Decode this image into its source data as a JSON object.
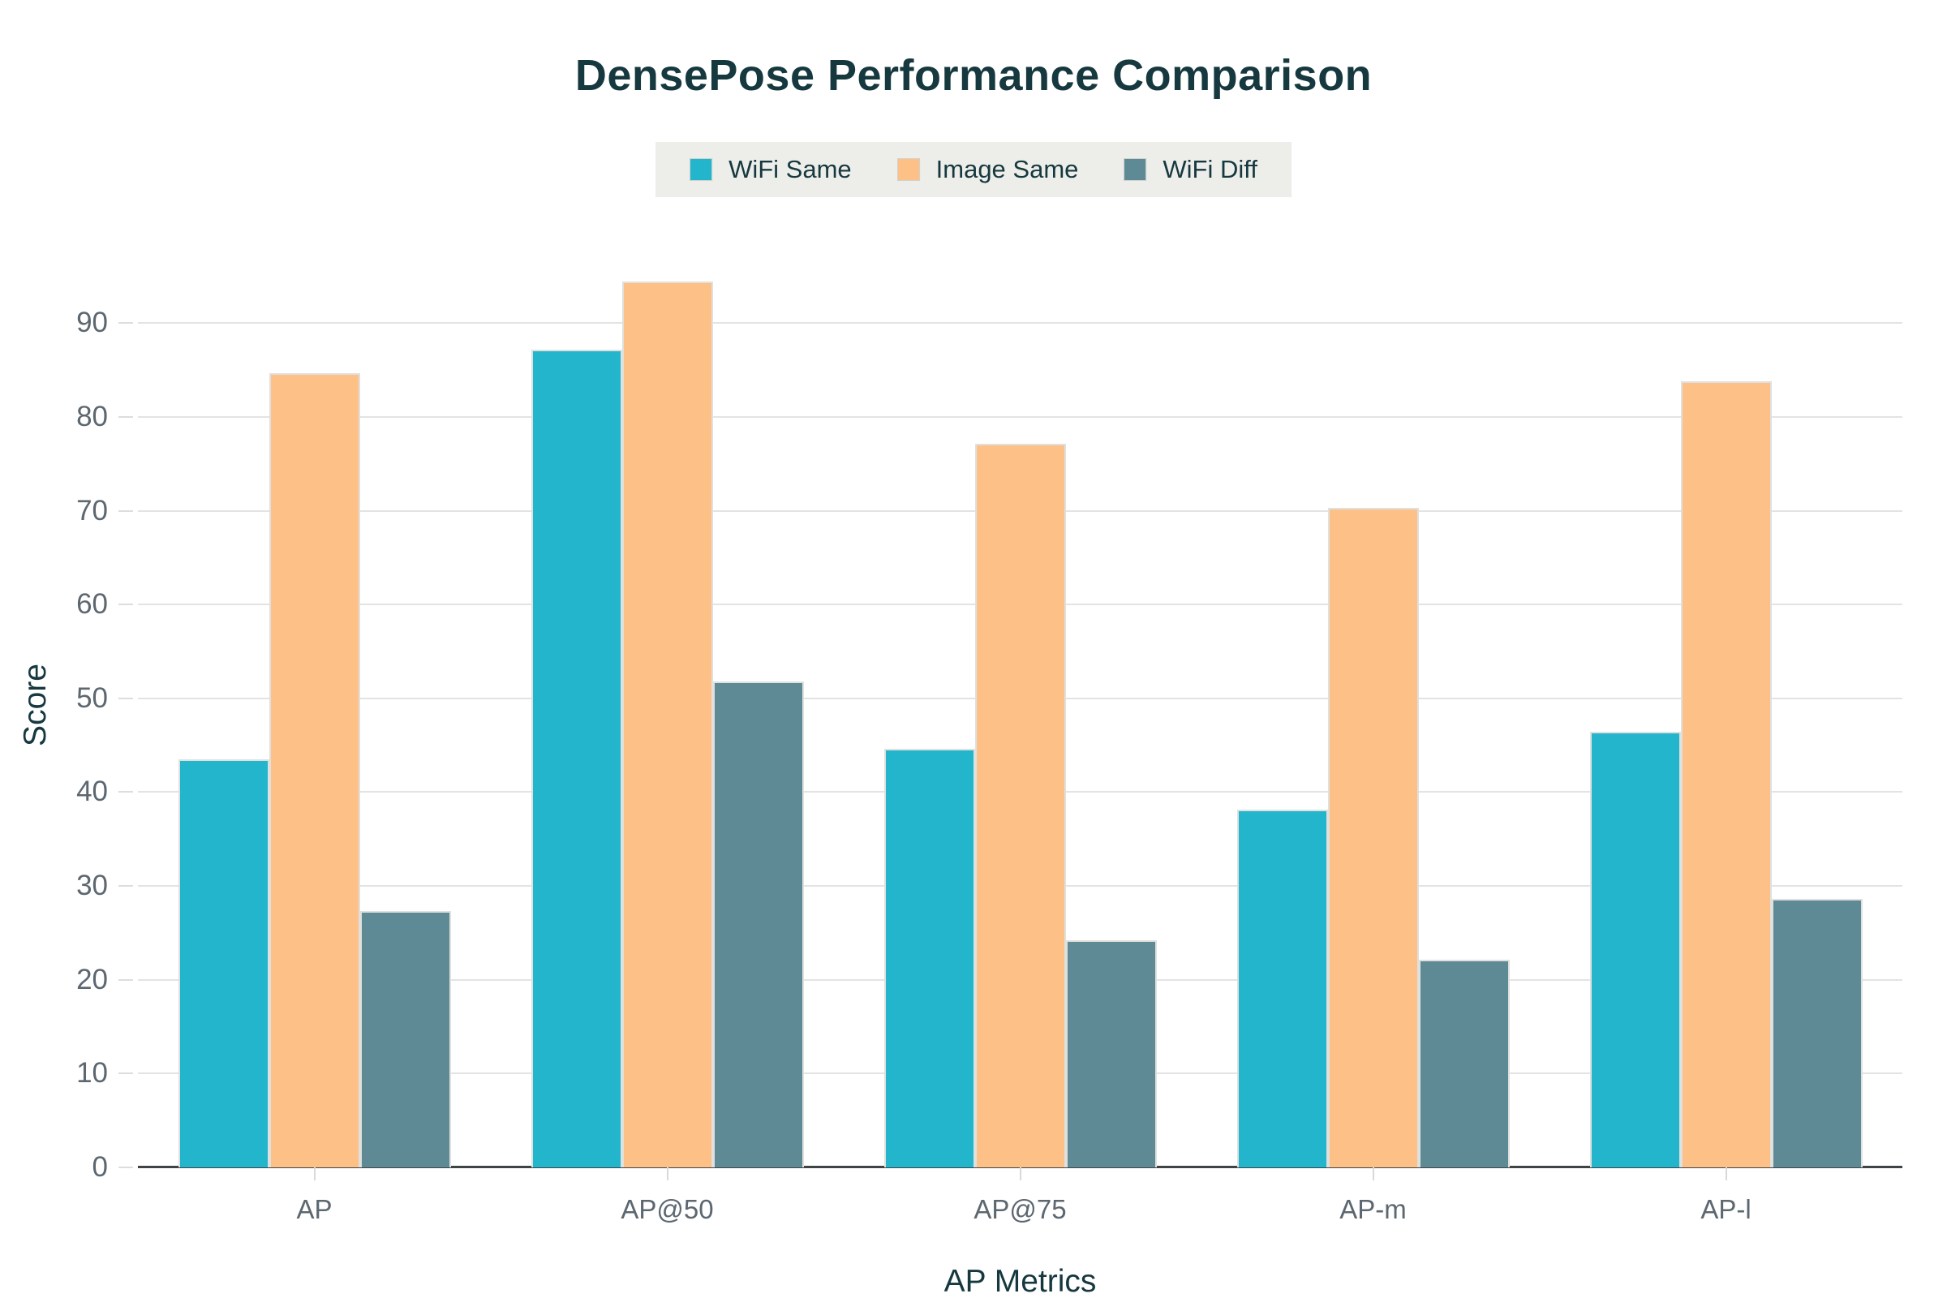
{
  "title": "DensePose Performance Comparison",
  "legend": {
    "background": "#edeeea",
    "items": [
      {
        "label": "WiFi Same",
        "color": "#22b5cb"
      },
      {
        "label": "Image Same",
        "color": "#fdc086"
      },
      {
        "label": "WiFi Diff",
        "color": "#5d8a94"
      }
    ]
  },
  "axes": {
    "x_title": "AP Metrics",
    "y_title": "Score"
  },
  "chart_data": {
    "type": "bar",
    "title": "DensePose Performance Comparison",
    "xlabel": "AP Metrics",
    "ylabel": "Score",
    "categories": [
      "AP",
      "AP@50",
      "AP@75",
      "AP-m",
      "AP-l"
    ],
    "series": [
      {
        "name": "WiFi Same",
        "color": "#22b5cb",
        "values": [
          43.5,
          87.2,
          44.6,
          38.1,
          46.4
        ]
      },
      {
        "name": "Image Same",
        "color": "#fdc086",
        "values": [
          84.7,
          94.4,
          77.1,
          70.3,
          83.8
        ]
      },
      {
        "name": "WiFi Diff",
        "color": "#5d8a94",
        "values": [
          27.3,
          51.8,
          24.2,
          22.1,
          28.6
        ]
      }
    ],
    "ylim": [
      0,
      98.5
    ],
    "yticks": [
      0,
      10,
      20,
      30,
      40,
      50,
      60,
      70,
      80,
      90
    ],
    "grid": true,
    "legend_position": "top-center",
    "colors": {
      "title_text": "#16383f",
      "tick_text": "#5c6770",
      "gridline": "#e3e3e2",
      "axis_line": "#3e4345",
      "legend_background": "#edeeea",
      "background": "#ffffff"
    }
  }
}
